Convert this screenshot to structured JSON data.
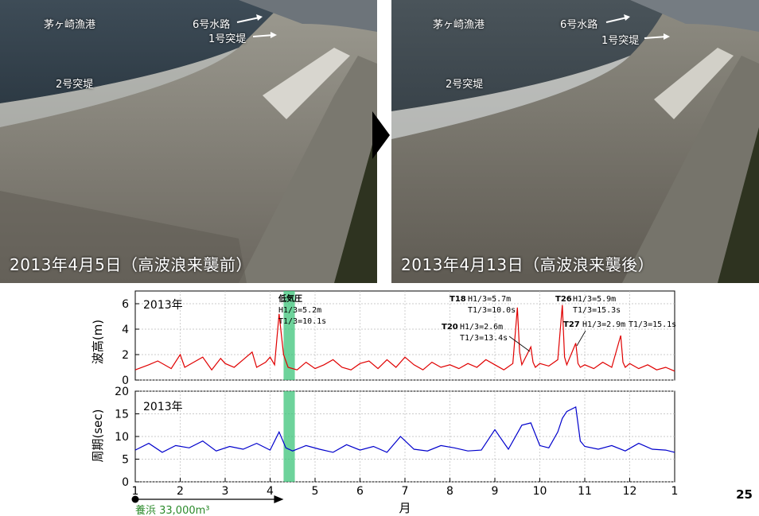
{
  "photos": [
    {
      "caption": "2013年4月5日（高波浪来襲前）",
      "labels": {
        "port": "茅ヶ崎漁港",
        "channel6": "6号水路",
        "jetty1": "1号突堤",
        "jetty2": "2号突堤"
      }
    },
    {
      "caption": "2013年4月13日（高波浪来襲後）",
      "labels": {
        "port": "茅ヶ崎漁港",
        "channel6": "6号水路",
        "jetty1": "1号突堤",
        "jetty2": "2号突堤"
      }
    }
  ],
  "colors": {
    "wave_height": "#e00000",
    "period": "#0000cc",
    "highlight": "#3cc47a",
    "nourishment": "#2a8a2a"
  },
  "chart_data": [
    {
      "type": "line",
      "ylabel": "波高(m)",
      "year_label": "2013年",
      "ylim": [
        0,
        7
      ],
      "yticks": [
        0,
        2,
        4,
        6
      ],
      "xlim": [
        1,
        13
      ],
      "xticks": [
        "1",
        "2",
        "3",
        "4",
        "5",
        "6",
        "7",
        "8",
        "9",
        "10",
        "11",
        "12",
        "1"
      ],
      "series": [
        {
          "x": [
            1.0,
            1.3,
            1.5,
            1.8,
            2.0,
            2.1,
            2.3,
            2.5,
            2.7,
            2.9,
            3.0,
            3.2,
            3.4,
            3.6,
            3.7,
            3.9,
            4.0,
            4.1,
            4.2,
            4.3,
            4.4,
            4.6,
            4.8,
            5.0,
            5.2,
            5.4,
            5.6,
            5.8,
            6.0,
            6.2,
            6.4,
            6.6,
            6.8,
            7.0,
            7.2,
            7.4,
            7.6,
            7.8,
            8.0,
            8.2,
            8.4,
            8.6,
            8.8,
            9.0,
            9.2,
            9.4,
            9.5,
            9.55,
            9.6,
            9.8,
            9.85,
            9.9,
            10.0,
            10.2,
            10.4,
            10.5,
            10.55,
            10.6,
            10.8,
            10.85,
            10.9,
            11.0,
            11.2,
            11.4,
            11.6,
            11.8,
            11.85,
            11.9,
            12.0,
            12.2,
            12.4,
            12.6,
            12.8,
            13.0
          ],
          "y": [
            0.8,
            1.2,
            1.5,
            0.9,
            2.0,
            1.0,
            1.4,
            1.8,
            0.8,
            1.7,
            1.3,
            1.0,
            1.6,
            2.2,
            1.0,
            1.4,
            1.8,
            1.2,
            5.2,
            2.0,
            1.0,
            0.8,
            1.4,
            0.9,
            1.2,
            1.6,
            1.0,
            0.8,
            1.3,
            1.5,
            0.9,
            1.6,
            1.0,
            1.8,
            1.2,
            0.8,
            1.4,
            1.0,
            1.2,
            0.9,
            1.3,
            1.0,
            1.6,
            1.2,
            0.8,
            1.3,
            5.7,
            2.2,
            1.2,
            2.6,
            1.4,
            1.0,
            1.3,
            1.1,
            1.6,
            5.9,
            1.8,
            1.2,
            2.9,
            1.3,
            1.0,
            1.2,
            0.9,
            1.4,
            1.0,
            3.5,
            1.4,
            1.0,
            1.3,
            0.9,
            1.2,
            0.8,
            1.0,
            0.7
          ]
        }
      ],
      "annotations": [
        {
          "name": "低気圧",
          "h": "H1/3=5.2m",
          "t": "T1/3=10.1s"
        },
        {
          "name": "T18",
          "h": "H1/3=5.7m",
          "t": "T1/3=10.0s"
        },
        {
          "name": "T20",
          "h": "H1/3=2.6m",
          "t": "T1/3=13.4s"
        },
        {
          "name": "T26",
          "h": "H1/3=5.9m",
          "t": "T1/3=15.3s"
        },
        {
          "name": "T27",
          "h": "H1/3=2.9m",
          "t": "T1/3=15.1s"
        }
      ],
      "highlight_x": [
        4.3,
        4.55
      ]
    },
    {
      "type": "line",
      "ylabel": "周期(sec)",
      "year_label": "2013年",
      "xlabel": "月",
      "ylim": [
        0,
        20
      ],
      "yticks": [
        0,
        5,
        10,
        15,
        20
      ],
      "xlim": [
        1,
        13
      ],
      "xticks": [
        "1",
        "2",
        "3",
        "4",
        "5",
        "6",
        "7",
        "8",
        "9",
        "10",
        "11",
        "12",
        "1"
      ],
      "series": [
        {
          "x": [
            1.0,
            1.3,
            1.6,
            1.9,
            2.2,
            2.5,
            2.8,
            3.1,
            3.4,
            3.7,
            4.0,
            4.2,
            4.35,
            4.5,
            4.8,
            5.1,
            5.4,
            5.7,
            6.0,
            6.3,
            6.6,
            6.9,
            7.2,
            7.5,
            7.8,
            8.1,
            8.4,
            8.7,
            9.0,
            9.3,
            9.6,
            9.8,
            10.0,
            10.2,
            10.4,
            10.5,
            10.6,
            10.8,
            10.9,
            11.0,
            11.3,
            11.6,
            11.9,
            12.2,
            12.5,
            12.8,
            13.0
          ],
          "y": [
            7.0,
            8.5,
            6.5,
            8.0,
            7.5,
            9.0,
            6.8,
            7.8,
            7.2,
            8.5,
            7.0,
            11.0,
            7.5,
            6.8,
            8.0,
            7.2,
            6.5,
            8.2,
            7.0,
            7.8,
            6.5,
            10.0,
            7.2,
            6.8,
            8.0,
            7.5,
            6.8,
            7.0,
            11.5,
            7.2,
            12.5,
            13.0,
            8.0,
            7.5,
            11.0,
            14.0,
            15.5,
            16.5,
            9.0,
            7.8,
            7.2,
            8.0,
            6.8,
            8.5,
            7.2,
            7.0,
            6.5
          ]
        }
      ],
      "highlight_x": [
        4.3,
        4.55
      ]
    }
  ],
  "nourishment": {
    "label": "養浜 33,000m³",
    "start_month": 1,
    "end_month": 4.3
  },
  "page_number": "25"
}
